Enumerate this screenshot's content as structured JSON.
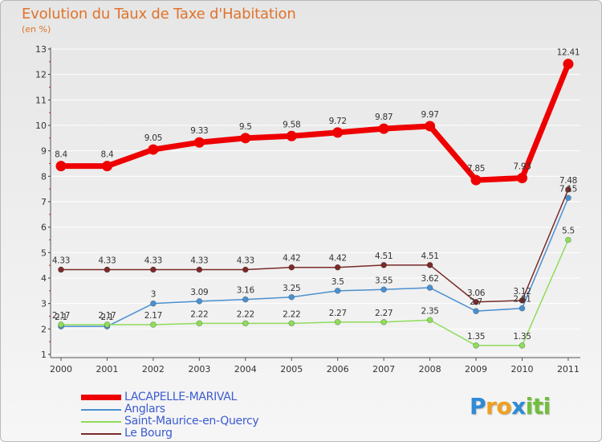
{
  "title": "Evolution du Taux de Taxe d'Habitation",
  "unit_label": "(en %)",
  "brand": {
    "letters": [
      "P",
      "r",
      "o",
      "x",
      "i",
      "t",
      "i"
    ],
    "colors": [
      "#2e8bd6",
      "#f0a020",
      "#f0a020",
      "#2e8bd6",
      "#6fbf3a",
      "#6fbf3a",
      "#6fbf3a"
    ]
  },
  "chart_data": {
    "type": "line",
    "title": "Evolution du Taux de Taxe d'Habitation",
    "ylabel": "(en %)",
    "x": [
      "2000",
      "2001",
      "2002",
      "2003",
      "2004",
      "2005",
      "2006",
      "2007",
      "2008",
      "2009",
      "2010",
      "2011"
    ],
    "ylim": [
      1,
      13
    ],
    "yticks": [
      "1",
      "2",
      "3",
      "4",
      "5",
      "6",
      "7",
      "8",
      "9",
      "10",
      "11",
      "12",
      "13"
    ],
    "grid": "horizontal",
    "legend_position": "bottom-left",
    "series": [
      {
        "name": "LACAPELLE-MARIVAL",
        "color": "#ee0000",
        "thick": true,
        "values": [
          8.4,
          8.4,
          9.05,
          9.33,
          9.5,
          9.58,
          9.72,
          9.87,
          9.97,
          7.85,
          7.93,
          12.41
        ],
        "labels": [
          "8.4",
          "8.4",
          "9.05",
          "9.33",
          "9.5",
          "9.58",
          "9.72",
          "9.87",
          "9.97",
          "7.85",
          "7.93",
          "12.41"
        ]
      },
      {
        "name": "Anglars",
        "color": "#4a90d0",
        "thick": false,
        "values": [
          2.1,
          2.1,
          3.0,
          3.09,
          3.16,
          3.25,
          3.5,
          3.55,
          3.62,
          2.7,
          2.81,
          7.15
        ],
        "labels": [
          "2.1",
          "2.1",
          "3",
          "3.09",
          "3.16",
          "3.25",
          "3.5",
          "3.55",
          "3.62",
          "2.7",
          "2.81",
          "7.15"
        ]
      },
      {
        "name": "Saint-Maurice-en-Quercy",
        "color": "#8edc5a",
        "thick": false,
        "values": [
          2.17,
          2.17,
          2.17,
          2.22,
          2.22,
          2.22,
          2.27,
          2.27,
          2.35,
          1.35,
          1.35,
          5.5
        ],
        "labels": [
          "2.17",
          "2.17",
          "2.17",
          "2.22",
          "2.22",
          "2.22",
          "2.27",
          "2.27",
          "2.35",
          "1.35",
          "1.35",
          "5.5"
        ]
      },
      {
        "name": "Le Bourg",
        "color": "#7a2a2a",
        "thick": false,
        "values": [
          4.33,
          4.33,
          4.33,
          4.33,
          4.33,
          4.42,
          4.42,
          4.51,
          4.51,
          3.06,
          3.12,
          7.48
        ],
        "labels": [
          "4.33",
          "4.33",
          "4.33",
          "4.33",
          "4.33",
          "4.42",
          "4.42",
          "4.51",
          "4.51",
          "3.06",
          "3.12",
          "7.48"
        ]
      }
    ]
  }
}
